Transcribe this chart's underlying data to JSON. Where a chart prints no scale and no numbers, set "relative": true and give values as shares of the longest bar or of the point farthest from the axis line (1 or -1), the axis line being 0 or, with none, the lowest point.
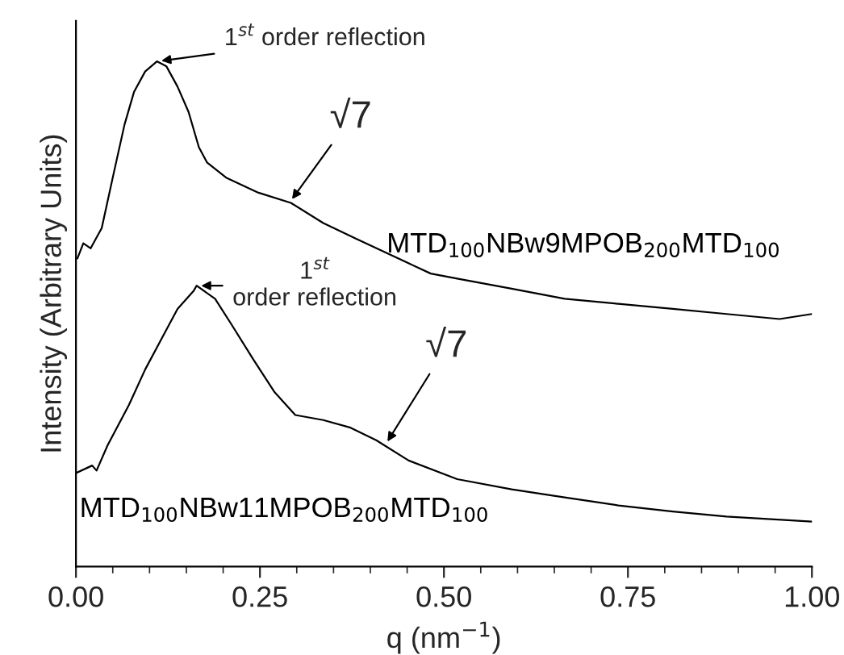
{
  "chart_data": {
    "type": "line",
    "relative": true,
    "xlabel": "q (nm$^{−1}$)",
    "ylabel": "Intensity (Arbitrary Units)",
    "xlim": [
      0,
      1
    ],
    "xticks": [
      {
        "value": 0,
        "label": "0.00"
      },
      {
        "value": 0.25,
        "label": "0.25"
      },
      {
        "value": 0.5,
        "label": "0.50"
      },
      {
        "value": 0.75,
        "label": "0.75"
      },
      {
        "value": 1,
        "label": "1.00"
      }
    ],
    "series": [
      {
        "name": "MTD$_{100}$NBw9MPOB$_{200}$MTD$_{100}$",
        "color": "#000000",
        "x": [
          0.002,
          0.01,
          0.02,
          0.035,
          0.05,
          0.066,
          0.079,
          0.094,
          0.11,
          0.123,
          0.138,
          0.153,
          0.167,
          0.178,
          0.204,
          0.248,
          0.292,
          0.336,
          0.379,
          0.423,
          0.482,
          0.518,
          0.592,
          0.664,
          0.737,
          0.811,
          0.884,
          0.956,
          1.0
        ],
        "values": [
          0.61,
          0.64,
          0.63,
          0.67,
          0.77,
          0.875,
          0.94,
          0.98,
          1.0,
          0.99,
          0.95,
          0.9,
          0.83,
          0.8,
          0.77,
          0.74,
          0.72,
          0.68,
          0.65,
          0.62,
          0.58,
          0.57,
          0.55,
          0.53,
          0.52,
          0.51,
          0.5,
          0.49,
          0.5
        ]
      },
      {
        "name": "MTD$_{100}$NBw11MPOB$_{200}$MTD$_{100}$",
        "color": "#000000",
        "x": [
          0.0,
          0.022,
          0.028,
          0.043,
          0.072,
          0.094,
          0.116,
          0.138,
          0.16,
          0.164,
          0.189,
          0.211,
          0.241,
          0.27,
          0.298,
          0.336,
          0.373,
          0.408,
          0.452,
          0.518,
          0.592,
          0.664,
          0.737,
          0.811,
          0.884,
          1.0
        ],
        "values": [
          0.185,
          0.2,
          0.19,
          0.24,
          0.32,
          0.39,
          0.45,
          0.51,
          0.546,
          0.556,
          0.53,
          0.48,
          0.41,
          0.345,
          0.3,
          0.29,
          0.275,
          0.25,
          0.21,
          0.173,
          0.153,
          0.137,
          0.121,
          0.109,
          0.099,
          0.089
        ]
      }
    ],
    "annotations": [
      {
        "text": "1$^{st}$ order reflection",
        "x": 0.11,
        "y": 1.0
      },
      {
        "text": "√7",
        "x": 0.29,
        "y": 0.72
      },
      {
        "text": "1$^{st}$\norder reflection",
        "x": 0.164,
        "y": 0.556
      },
      {
        "text": "√7",
        "x": 0.42,
        "y": 0.24
      }
    ]
  }
}
